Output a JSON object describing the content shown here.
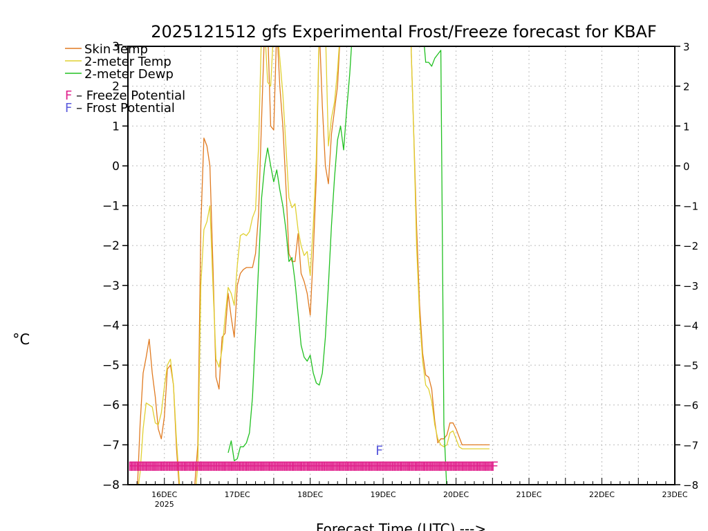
{
  "chart_data": {
    "type": "line",
    "title": "2025121512 gfs Experimental Frost/Freeze forecast for KBAF",
    "ylabel": "°C",
    "xlabel": "Forecast Time (UTC) --->",
    "ylim": [
      -8,
      3
    ],
    "xlim": [
      0,
      180
    ],
    "yticks": [
      3,
      2,
      1,
      0,
      -1,
      -2,
      -3,
      -4,
      -5,
      -6,
      -7,
      -8
    ],
    "ytick_labels": [
      "3",
      "2",
      "1",
      "0",
      "−1",
      "−2",
      "−3",
      "−4",
      "−5",
      "−6",
      "−7",
      "−8"
    ],
    "xticks": [
      {
        "hour": 12,
        "label": "16DEC",
        "sublabel": "2025"
      },
      {
        "hour": 36,
        "label": "17DEC",
        "sublabel": ""
      },
      {
        "hour": 60,
        "label": "18DEC",
        "sublabel": ""
      },
      {
        "hour": 84,
        "label": "19DEC",
        "sublabel": ""
      },
      {
        "hour": 108,
        "label": "20DEC",
        "sublabel": ""
      },
      {
        "hour": 132,
        "label": "21DEC",
        "sublabel": ""
      },
      {
        "hour": 156,
        "label": "22DEC",
        "sublabel": ""
      },
      {
        "hour": 180,
        "label": "23DEC",
        "sublabel": ""
      }
    ],
    "grid": true,
    "series": [
      {
        "name": "Skin Temp",
        "color": "#e07a20",
        "x": [
          3,
          4,
          5,
          6,
          7,
          8,
          9,
          10,
          11,
          12,
          13,
          14,
          15,
          16,
          17,
          18,
          19,
          20,
          21,
          22,
          23,
          24,
          25,
          26,
          27,
          28,
          29,
          30,
          31,
          32,
          33,
          34,
          35,
          36,
          37,
          38,
          39,
          40,
          41,
          42,
          43,
          44,
          45,
          46,
          47,
          48,
          49,
          50,
          51,
          52,
          53,
          54,
          55,
          56,
          57,
          58,
          59,
          60,
          61,
          62,
          63,
          64,
          65,
          66,
          67,
          68,
          69,
          70,
          71,
          72,
          73,
          74,
          75,
          76,
          77,
          78,
          79,
          80,
          81,
          82,
          83,
          84,
          85,
          86,
          87,
          88,
          89,
          90,
          91,
          92,
          93,
          94,
          95,
          96,
          97,
          98,
          99,
          100,
          101,
          102,
          103,
          104,
          105,
          106,
          107,
          108,
          109,
          110,
          111,
          112,
          113,
          114,
          115,
          116,
          117,
          118,
          119
        ],
        "y": [
          -8.3,
          -6.5,
          -5.2,
          -4.8,
          -4.35,
          -5.2,
          -5.8,
          -6.6,
          -6.85,
          -6.3,
          -5.1,
          -5.0,
          -5.5,
          -7.1,
          -8.2,
          -8.4,
          -8.3,
          -8.1,
          -8.5,
          -8.0,
          -7.0,
          -1.5,
          0.7,
          0.5,
          0.0,
          -2.5,
          -5.3,
          -5.6,
          -4.3,
          -4.2,
          -3.2,
          -3.8,
          -4.3,
          -3.0,
          -2.7,
          -2.6,
          -2.55,
          -2.55,
          -2.55,
          -2.2,
          -1.2,
          1.2,
          3.5,
          3.5,
          1.0,
          0.9,
          3.5,
          2.0,
          1.0,
          -0.5,
          -2.2,
          -2.4,
          -2.4,
          -1.7,
          -2.7,
          -2.9,
          -3.2,
          -3.75,
          -2.2,
          -0.3,
          3.5,
          1.5,
          0.0,
          -0.45,
          0.8,
          1.4,
          2.0,
          3.5,
          3.5,
          3.5,
          3.5,
          3.5,
          3.5,
          3.5,
          3.5,
          3.5,
          3.5,
          3.5,
          3.5,
          3.5,
          3.5,
          3.5,
          3.5,
          3.5,
          3.5,
          3.5,
          3.5,
          3.5,
          3.5,
          3.5,
          3.5,
          1.0,
          -1.5,
          -3.5,
          -4.7,
          -5.25,
          -5.3,
          -5.6,
          -6.4,
          -6.95,
          -6.85,
          -6.85,
          -6.75,
          -6.45,
          -6.45,
          -6.6,
          -6.8,
          -7.0,
          -7.0,
          -7.0,
          -7.0,
          -7.0,
          -7.0,
          -7.0,
          -7.0,
          -7.0,
          -7.0
        ]
      },
      {
        "name": "2-meter Temp",
        "color": "#e0d030",
        "x": [
          3,
          4,
          5,
          6,
          7,
          8,
          9,
          10,
          11,
          12,
          13,
          14,
          15,
          16,
          17,
          18,
          19,
          20,
          21,
          22,
          23,
          24,
          25,
          26,
          27,
          28,
          29,
          30,
          31,
          32,
          33,
          34,
          35,
          36,
          37,
          38,
          39,
          40,
          41,
          42,
          43,
          44,
          45,
          46,
          47,
          48,
          49,
          50,
          51,
          52,
          53,
          54,
          55,
          56,
          57,
          58,
          59,
          60,
          61,
          62,
          63,
          64,
          65,
          66,
          67,
          68,
          69,
          70,
          71,
          72,
          73,
          74,
          75,
          76,
          77,
          78,
          79,
          80,
          81,
          82,
          83,
          84,
          85,
          86,
          87,
          88,
          89,
          90,
          91,
          92,
          93,
          94,
          95,
          96,
          97,
          98,
          99,
          100,
          101,
          102,
          103,
          104,
          105,
          106,
          107,
          108,
          109,
          110,
          111,
          112,
          113,
          114,
          115,
          116,
          117,
          118,
          119
        ],
        "y": [
          -8.3,
          -7.7,
          -6.6,
          -5.95,
          -6.0,
          -6.05,
          -6.45,
          -6.5,
          -6.2,
          -5.55,
          -5.0,
          -4.85,
          -5.5,
          -6.9,
          -8.0,
          -8.3,
          -8.3,
          -8.3,
          -8.5,
          -8.4,
          -7.5,
          -3.0,
          -1.6,
          -1.4,
          -1.0,
          -3.0,
          -4.85,
          -5.05,
          -4.6,
          -3.8,
          -3.05,
          -3.2,
          -3.5,
          -2.5,
          -1.75,
          -1.7,
          -1.75,
          -1.65,
          -1.3,
          -1.1,
          0.5,
          3.5,
          3.5,
          2.1,
          2.0,
          3.5,
          3.5,
          2.7,
          1.8,
          0.5,
          -0.8,
          -1.05,
          -0.95,
          -1.6,
          -2.0,
          -2.25,
          -2.15,
          -2.75,
          -1.5,
          0.2,
          3.5,
          3.5,
          3.5,
          0.5,
          1.2,
          1.6,
          2.4,
          3.5,
          3.5,
          3.5,
          3.5,
          3.5,
          3.5,
          3.5,
          3.5,
          3.5,
          3.5,
          3.5,
          3.5,
          3.5,
          3.5,
          3.5,
          3.5,
          3.5,
          3.5,
          3.5,
          3.5,
          3.5,
          3.5,
          3.5,
          3.5,
          1.0,
          -2.0,
          -3.8,
          -4.9,
          -5.5,
          -5.6,
          -5.9,
          -6.5,
          -6.85,
          -7.0,
          -7.05,
          -7.0,
          -6.7,
          -6.65,
          -6.85,
          -7.05,
          -7.1,
          -7.1,
          -7.1,
          -7.1,
          -7.1,
          -7.1,
          -7.1,
          -7.1,
          -7.1,
          -7.1
        ]
      },
      {
        "name": "2-meter Dewp",
        "color": "#20c020",
        "x": [
          33,
          34,
          35,
          36,
          37,
          38,
          39,
          40,
          41,
          42,
          43,
          44,
          45,
          46,
          47,
          48,
          49,
          50,
          51,
          52,
          53,
          54,
          55,
          56,
          57,
          58,
          59,
          60,
          61,
          62,
          63,
          64,
          65,
          66,
          67,
          68,
          69,
          70,
          71,
          72,
          73,
          74,
          75,
          76,
          77,
          78,
          79,
          80,
          81,
          82,
          83,
          84,
          85,
          86,
          87,
          88,
          89,
          90,
          91,
          92,
          93,
          94,
          95,
          96,
          97,
          98,
          99,
          100,
          101,
          102,
          103,
          104,
          105,
          106,
          107,
          108,
          109,
          110,
          111,
          112,
          113,
          114,
          115,
          116,
          117,
          118,
          119
        ],
        "y": [
          -7.2,
          -6.9,
          -7.4,
          -7.35,
          -7.05,
          -7.05,
          -6.95,
          -6.7,
          -5.8,
          -4.2,
          -2.5,
          -0.8,
          0.0,
          0.45,
          0.0,
          -0.4,
          -0.1,
          -0.6,
          -1.0,
          -1.6,
          -2.4,
          -2.3,
          -2.9,
          -3.7,
          -4.5,
          -4.8,
          -4.9,
          -4.75,
          -5.2,
          -5.45,
          -5.5,
          -5.2,
          -4.3,
          -3.0,
          -1.5,
          -0.3,
          0.65,
          1.0,
          0.4,
          1.4,
          2.3,
          3.5,
          3.5,
          3.5,
          3.5,
          3.5,
          3.5,
          3.5,
          3.5,
          3.5,
          3.5,
          3.5,
          3.5,
          3.5,
          3.5,
          3.5,
          3.5,
          3.5,
          3.5,
          3.5,
          3.5,
          3.5,
          3.5,
          3.5,
          3.5,
          2.6,
          2.6,
          2.5,
          2.7,
          2.8,
          2.9,
          -6.5,
          -8.2,
          -8.5,
          -8.5,
          -8.5,
          -8.5,
          -8.5,
          -8.5,
          -8.5,
          -8.5,
          -8.5,
          -8.5,
          -8.5,
          -8.5,
          -8.5,
          -8.5
        ]
      }
    ],
    "legend": {
      "placement": "top-left",
      "entries": [
        {
          "name": "Skin Temp",
          "color": "#e07a20"
        },
        {
          "name": "2-meter Temp",
          "color": "#e0d030"
        },
        {
          "name": "2-meter Dewp",
          "color": "#20c020"
        }
      ],
      "flag_entries": [
        {
          "glyph": "F",
          "text": " – Freeze Potential",
          "color": "#e0208c"
        },
        {
          "glyph": "F",
          "text": " – Frost Potential",
          "color": "#5a5adc"
        }
      ]
    },
    "freeze_flags": {
      "color": "#e0208c",
      "glyph": "F",
      "value": -7.55,
      "hours": [
        0,
        0.5,
        1,
        1.5,
        2,
        2.5,
        3,
        3.5,
        4,
        4.5,
        5,
        5.5,
        6,
        6.5,
        7,
        7.5,
        8,
        8.5,
        9,
        9.5,
        10,
        10.5,
        11,
        11.5,
        12,
        12.5,
        13,
        13.5,
        14,
        14.5,
        15,
        15.5,
        16,
        16.5,
        17,
        17.5,
        18,
        18.5,
        19,
        19.5,
        20,
        20.5,
        21,
        21.5,
        22,
        22.5,
        23,
        23.5,
        24,
        24.5,
        25,
        25.5,
        26,
        26.5,
        27,
        27.5,
        28,
        28.5,
        29,
        29.5,
        30,
        30.5,
        31,
        31.5,
        32,
        32.5,
        33,
        33.5,
        34,
        34.5,
        35,
        35.5,
        36,
        36.5,
        37,
        37.5,
        38,
        38.5,
        39,
        39.5,
        40,
        40.5,
        41,
        41.5,
        42,
        42.5,
        43,
        43.5,
        44,
        44.5,
        45,
        45.5,
        46,
        46.5,
        47,
        47.5,
        48,
        48.5,
        49,
        49.5,
        50,
        50.5,
        51,
        51.5,
        52,
        52.5,
        53,
        53.5,
        54,
        54.5,
        55,
        55.5,
        56,
        56.5,
        57,
        57.5,
        58,
        58.5,
        59,
        59.5,
        60,
        60.5,
        61,
        61.5,
        62,
        62.5,
        63,
        63.5,
        64,
        64.5,
        65,
        65.5,
        66,
        66.5,
        67,
        67.5,
        68,
        68.5,
        69,
        69.5,
        70,
        70.5,
        71,
        71.5,
        72,
        72.5,
        73,
        73.5,
        74,
        74.5,
        75,
        75.5,
        76,
        76.5,
        77,
        77.5,
        78,
        78.5,
        79,
        79.5,
        80,
        80.5,
        81,
        81.5,
        82,
        82.5,
        83,
        83.5,
        84,
        84.5,
        85,
        85.5,
        86,
        86.5,
        87,
        87.5,
        88,
        88.5,
        89,
        89.5,
        90,
        90.5,
        91,
        91.5,
        92,
        92.5,
        93,
        93.5,
        94,
        94.5,
        95,
        95.5,
        96,
        96.5,
        97,
        97.5,
        98,
        98.5,
        99,
        99.5,
        100,
        100.5,
        101,
        101.5,
        102,
        102.5,
        103,
        103.5,
        104,
        104.5,
        105,
        105.5,
        106,
        106.5,
        107,
        107.5,
        108,
        108.5,
        109,
        109.5,
        110,
        110.5,
        111,
        111.5,
        112,
        112.5,
        113,
        113.5,
        114,
        114.5,
        115,
        115.5,
        116,
        116.5,
        117,
        117.5,
        118,
        118.5,
        119,
        119.5
      ]
    },
    "frost_flags": {
      "color": "#5a5adc",
      "glyph": "F",
      "value": -7.15,
      "hours": [
        81.5
      ]
    }
  }
}
